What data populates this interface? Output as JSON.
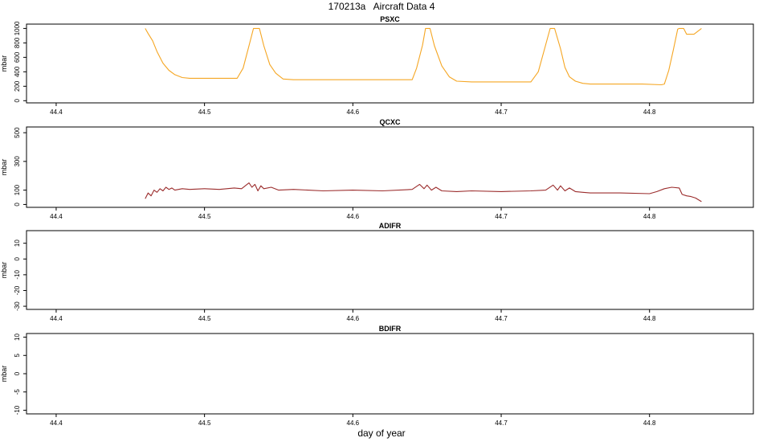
{
  "page": {
    "title": "170213a   Aircraft Data 4",
    "xlabel": "day of year"
  },
  "colors": {
    "PSXC": "#f5a623",
    "QCXC": "#9b2c2c",
    "frame": "#000000"
  },
  "chart_data": [
    {
      "type": "line",
      "title": "PSXC",
      "ylabel": "mbar",
      "xlim": [
        44.38,
        44.87
      ],
      "ylim": [
        -30,
        1060
      ],
      "xticks": [
        44.4,
        44.5,
        44.6,
        44.7,
        44.8
      ],
      "xtick_labels": [
        "44.4",
        "44.5",
        "44.6",
        "44.7",
        "44.8"
      ],
      "yticks": [
        0,
        200,
        400,
        600,
        800,
        1000
      ],
      "ytick_labels": [
        "0",
        "200",
        "400",
        "600",
        "800",
        "1000"
      ],
      "series": [
        {
          "color_key": "PSXC",
          "x": [
            44.46,
            44.462,
            44.465,
            44.468,
            44.472,
            44.476,
            44.48,
            44.485,
            44.49,
            44.5,
            44.51,
            44.522,
            44.526,
            44.53,
            44.533,
            44.537,
            44.54,
            44.544,
            44.548,
            44.553,
            44.56,
            44.58,
            44.6,
            44.62,
            44.64,
            44.643,
            44.647,
            44.649,
            44.652,
            44.655,
            44.66,
            44.665,
            44.67,
            44.68,
            44.7,
            44.72,
            44.725,
            44.729,
            44.733,
            44.736,
            44.74,
            44.743,
            44.746,
            44.75,
            44.755,
            44.76,
            44.77,
            44.78,
            44.795,
            44.808,
            44.81,
            44.813,
            44.816,
            44.819,
            44.82,
            44.823,
            44.825,
            44.83,
            44.835
          ],
          "y": [
            1000,
            930,
            830,
            680,
            520,
            420,
            360,
            320,
            310,
            310,
            310,
            310,
            450,
            760,
            1000,
            1000,
            760,
            500,
            380,
            300,
            290,
            290,
            290,
            290,
            290,
            450,
            770,
            1000,
            1000,
            760,
            480,
            330,
            270,
            260,
            260,
            260,
            400,
            700,
            1000,
            1000,
            720,
            460,
            330,
            270,
            240,
            230,
            230,
            230,
            230,
            220,
            230,
            420,
            700,
            990,
            1000,
            1000,
            920,
            920,
            1000
          ]
        }
      ]
    },
    {
      "type": "line",
      "title": "QCXC",
      "ylabel": "mbar",
      "xlim": [
        44.38,
        44.87
      ],
      "ylim": [
        -20,
        540
      ],
      "xticks": [
        44.4,
        44.5,
        44.6,
        44.7,
        44.8
      ],
      "xtick_labels": [
        "44.4",
        "44.5",
        "44.6",
        "44.7",
        "44.8"
      ],
      "yticks": [
        0,
        100,
        300,
        500
      ],
      "ytick_labels": [
        "0",
        "100",
        "300",
        "500"
      ],
      "series": [
        {
          "color_key": "QCXC",
          "x": [
            44.46,
            44.462,
            44.464,
            44.466,
            44.468,
            44.47,
            44.472,
            44.474,
            44.476,
            44.478,
            44.48,
            44.485,
            44.49,
            44.5,
            44.51,
            44.52,
            44.525,
            44.53,
            44.532,
            44.534,
            44.536,
            44.538,
            44.54,
            44.545,
            44.55,
            44.56,
            44.58,
            44.6,
            44.62,
            44.64,
            44.645,
            44.648,
            44.65,
            44.653,
            44.656,
            44.66,
            44.67,
            44.68,
            44.7,
            44.72,
            44.73,
            44.735,
            44.738,
            44.74,
            44.743,
            44.746,
            44.75,
            44.755,
            44.76,
            44.78,
            44.8,
            44.805,
            44.81,
            44.815,
            44.82,
            44.822,
            44.825,
            44.828,
            44.831,
            44.835
          ],
          "y": [
            40,
            80,
            60,
            100,
            85,
            110,
            95,
            120,
            105,
            115,
            100,
            110,
            105,
            110,
            105,
            115,
            110,
            150,
            120,
            140,
            95,
            130,
            110,
            120,
            100,
            105,
            95,
            100,
            95,
            105,
            140,
            110,
            135,
            100,
            120,
            95,
            90,
            95,
            90,
            95,
            100,
            135,
            100,
            130,
            95,
            115,
            90,
            85,
            80,
            80,
            75,
            90,
            110,
            120,
            115,
            70,
            60,
            55,
            45,
            20
          ]
        }
      ]
    },
    {
      "type": "line",
      "title": "ADIFR",
      "ylabel": "mbar",
      "xlim": [
        44.38,
        44.87
      ],
      "ylim": [
        -32,
        18
      ],
      "xticks": [
        44.4,
        44.5,
        44.6,
        44.7,
        44.8
      ],
      "xtick_labels": [
        "44.4",
        "44.5",
        "44.6",
        "44.7",
        "44.8"
      ],
      "yticks": [
        -30,
        -20,
        -10,
        0,
        10
      ],
      "ytick_labels": [
        "-30",
        "-20",
        "-10",
        "0",
        "10"
      ],
      "series": []
    },
    {
      "type": "line",
      "title": "BDIFR",
      "ylabel": "mbar",
      "xlim": [
        44.38,
        44.87
      ],
      "ylim": [
        -11,
        11
      ],
      "xticks": [
        44.4,
        44.5,
        44.6,
        44.7,
        44.8
      ],
      "xtick_labels": [
        "44.4",
        "44.5",
        "44.6",
        "44.7",
        "44.8"
      ],
      "yticks": [
        -10,
        -5,
        0,
        5,
        10
      ],
      "ytick_labels": [
        "-10",
        "-5",
        "0",
        "5",
        "10"
      ],
      "series": []
    }
  ]
}
